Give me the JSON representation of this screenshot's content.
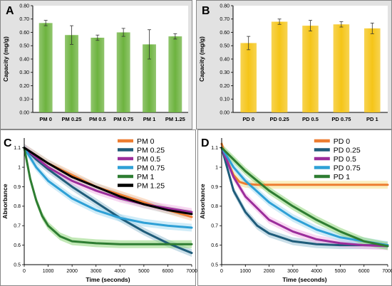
{
  "chart_data": [
    {
      "panel": "A",
      "type": "bar",
      "ylabel": "Capacity (mg/g)",
      "ylim": [
        0,
        0.8
      ],
      "yticks": [
        "0.00",
        "0.10",
        "0.20",
        "0.30",
        "0.40",
        "0.50",
        "0.60",
        "0.70",
        "0.80"
      ],
      "categories": [
        "PM 0",
        "PM 0.25",
        "PM 0.5",
        "PM 0.75",
        "PM 1",
        "PM 1.25"
      ],
      "values": [
        0.67,
        0.58,
        0.56,
        0.6,
        0.51,
        0.57
      ],
      "errors": [
        0.02,
        0.07,
        0.02,
        0.03,
        0.11,
        0.02
      ],
      "color": "#6db33f"
    },
    {
      "panel": "B",
      "type": "bar",
      "ylabel": "Capacity (mg/g)",
      "ylim": [
        0,
        0.8
      ],
      "yticks": [
        "0.00",
        "0.10",
        "0.20",
        "0.30",
        "0.40",
        "0.50",
        "0.60",
        "0.70",
        "0.80"
      ],
      "categories": [
        "PD 0",
        "PD 0.25",
        "PD 0.5",
        "PD 0.75",
        "PD 1"
      ],
      "values": [
        0.52,
        0.68,
        0.65,
        0.66,
        0.63
      ],
      "errors": [
        0.05,
        0.02,
        0.04,
        0.02,
        0.04
      ],
      "color": "#f5c518"
    },
    {
      "panel": "C",
      "type": "line",
      "xlabel": "Time  (seconds)",
      "ylabel": "Absorbance",
      "xlim": [
        0,
        7000
      ],
      "ylim": [
        0.5,
        1.15
      ],
      "xticks": [
        "0",
        "1000",
        "2000",
        "3000",
        "4000",
        "5000",
        "6000",
        "7000"
      ],
      "yticks": [
        "0.5",
        "0.6",
        "0.7",
        "0.8",
        "0.9",
        "1",
        "1.1"
      ],
      "legend": "top-right",
      "series": [
        {
          "name": "PM 0",
          "color": "#ed7d31",
          "band": "#f7c59f",
          "x": [
            0,
            500,
            1000,
            2000,
            3000,
            4000,
            5000,
            6000,
            7000
          ],
          "y": [
            1.1,
            1.06,
            1.02,
            0.96,
            0.9,
            0.86,
            0.82,
            0.78,
            0.745
          ]
        },
        {
          "name": "PM 0.25",
          "color": "#1f5c7a",
          "band": "#9cc3d6",
          "x": [
            0,
            500,
            1000,
            2000,
            3000,
            4000,
            5000,
            6000,
            7000
          ],
          "y": [
            1.1,
            1.04,
            0.99,
            0.9,
            0.82,
            0.74,
            0.67,
            0.61,
            0.56
          ]
        },
        {
          "name": "PM 0.5",
          "color": "#9b2d9b",
          "band": "#f2b6e8",
          "x": [
            0,
            500,
            1000,
            2000,
            3000,
            4000,
            5000,
            6000,
            7000
          ],
          "y": [
            1.1,
            1.05,
            1.0,
            0.93,
            0.88,
            0.84,
            0.81,
            0.79,
            0.77
          ]
        },
        {
          "name": "PM 0.75",
          "color": "#2ea0d6",
          "band": "#a9dcf2",
          "x": [
            0,
            500,
            1000,
            2000,
            3000,
            4000,
            5000,
            6000,
            7000
          ],
          "y": [
            1.1,
            1.0,
            0.93,
            0.84,
            0.78,
            0.74,
            0.715,
            0.7,
            0.69
          ]
        },
        {
          "name": "PM 1",
          "color": "#2e7d32",
          "band": "#8fd67a",
          "x": [
            0,
            250,
            500,
            750,
            1000,
            1500,
            2000,
            3000,
            4000,
            5000,
            6000,
            7000
          ],
          "y": [
            1.1,
            0.94,
            0.83,
            0.75,
            0.7,
            0.645,
            0.62,
            0.61,
            0.605,
            0.605,
            0.605,
            0.605
          ]
        },
        {
          "name": "PM 1.25",
          "color": "#000000",
          "band": "#cccccc",
          "x": [
            0,
            500,
            1000,
            2000,
            3000,
            4000,
            5000,
            6000,
            7000
          ],
          "y": [
            1.1,
            1.06,
            1.02,
            0.95,
            0.9,
            0.85,
            0.81,
            0.78,
            0.76
          ]
        }
      ]
    },
    {
      "panel": "D",
      "type": "line",
      "xlabel": "Time  (seconds)",
      "ylabel": "Absorbance",
      "xlim": [
        0,
        7000
      ],
      "ylim": [
        0.5,
        1.15
      ],
      "xticks": [
        "0",
        "1000",
        "2000",
        "3000",
        "4000",
        "5000",
        "6000",
        "7000"
      ],
      "yticks": [
        "0.5",
        "0.6",
        "0.7",
        "0.8",
        "0.9",
        "1",
        "1.1"
      ],
      "legend": "top-right",
      "series": [
        {
          "name": "PD 0",
          "color": "#ed7d31",
          "band": "#f7e08a",
          "x": [
            0,
            250,
            500,
            750,
            1000,
            1500,
            2000,
            3000,
            4000,
            5000,
            6000,
            7000
          ],
          "y": [
            1.12,
            1.03,
            0.96,
            0.925,
            0.915,
            0.91,
            0.91,
            0.91,
            0.91,
            0.91,
            0.91,
            0.91
          ]
        },
        {
          "name": "PD 0.25",
          "color": "#1f5c7a",
          "band": "#9cc3d6",
          "x": [
            0,
            500,
            1000,
            1500,
            2000,
            3000,
            4000,
            5000,
            6000,
            7000
          ],
          "y": [
            1.1,
            0.88,
            0.77,
            0.7,
            0.66,
            0.62,
            0.605,
            0.6,
            0.6,
            0.6
          ]
        },
        {
          "name": "PD 0.5",
          "color": "#9b2d9b",
          "band": "#f2b6e8",
          "x": [
            0,
            500,
            1000,
            2000,
            3000,
            4000,
            5000,
            6000,
            7000
          ],
          "y": [
            1.1,
            0.95,
            0.85,
            0.73,
            0.67,
            0.63,
            0.61,
            0.6,
            0.595
          ]
        },
        {
          "name": "PD 0.75",
          "color": "#2ea0d6",
          "band": "#a9dcf2",
          "x": [
            0,
            500,
            1000,
            2000,
            3000,
            4000,
            5000,
            6000,
            7000
          ],
          "y": [
            1.1,
            1.0,
            0.93,
            0.82,
            0.74,
            0.68,
            0.64,
            0.62,
            0.6
          ]
        },
        {
          "name": "PD 1",
          "color": "#2e7d32",
          "band": "#8fd67a",
          "x": [
            0,
            500,
            1000,
            2000,
            3000,
            4000,
            5000,
            6000,
            7000
          ],
          "y": [
            1.1,
            1.04,
            0.98,
            0.88,
            0.8,
            0.73,
            0.67,
            0.62,
            0.595
          ]
        }
      ]
    }
  ]
}
